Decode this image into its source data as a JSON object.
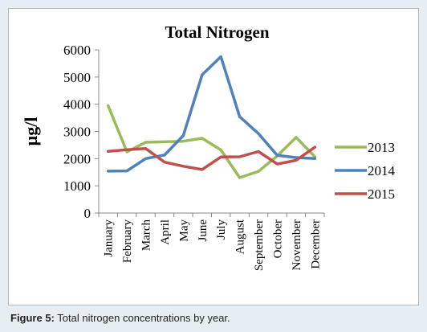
{
  "caption": {
    "label": "Figure 5:",
    "text": "Total nitrogen concentrations by year."
  },
  "chart_data": {
    "type": "line",
    "title": "Total Nitrogen",
    "ylabel": "µg/l",
    "xlabel": "",
    "ylim": [
      0,
      6000
    ],
    "yticks": [
      "0",
      "1000",
      "2000",
      "3000",
      "4000",
      "5000",
      "6000"
    ],
    "categories": [
      "January",
      "February",
      "March",
      "April",
      "May",
      "June",
      "July",
      "August",
      "September",
      "October",
      "November",
      "December"
    ],
    "grid": false,
    "legend": "right",
    "series": [
      {
        "name": "2013",
        "color": "#9bbb59",
        "values": [
          3950,
          2250,
          2600,
          2620,
          2640,
          2750,
          2320,
          1300,
          1530,
          2100,
          2780,
          2070
        ]
      },
      {
        "name": "2014",
        "color": "#4f81bd",
        "values": [
          1540,
          1550,
          2000,
          2130,
          2850,
          5080,
          5750,
          3540,
          2920,
          2120,
          2040,
          2000
        ]
      },
      {
        "name": "2015",
        "color": "#c0504d",
        "values": [
          2270,
          2330,
          2370,
          1870,
          1720,
          1600,
          2060,
          2070,
          2260,
          1800,
          1940,
          2420
        ]
      }
    ]
  }
}
